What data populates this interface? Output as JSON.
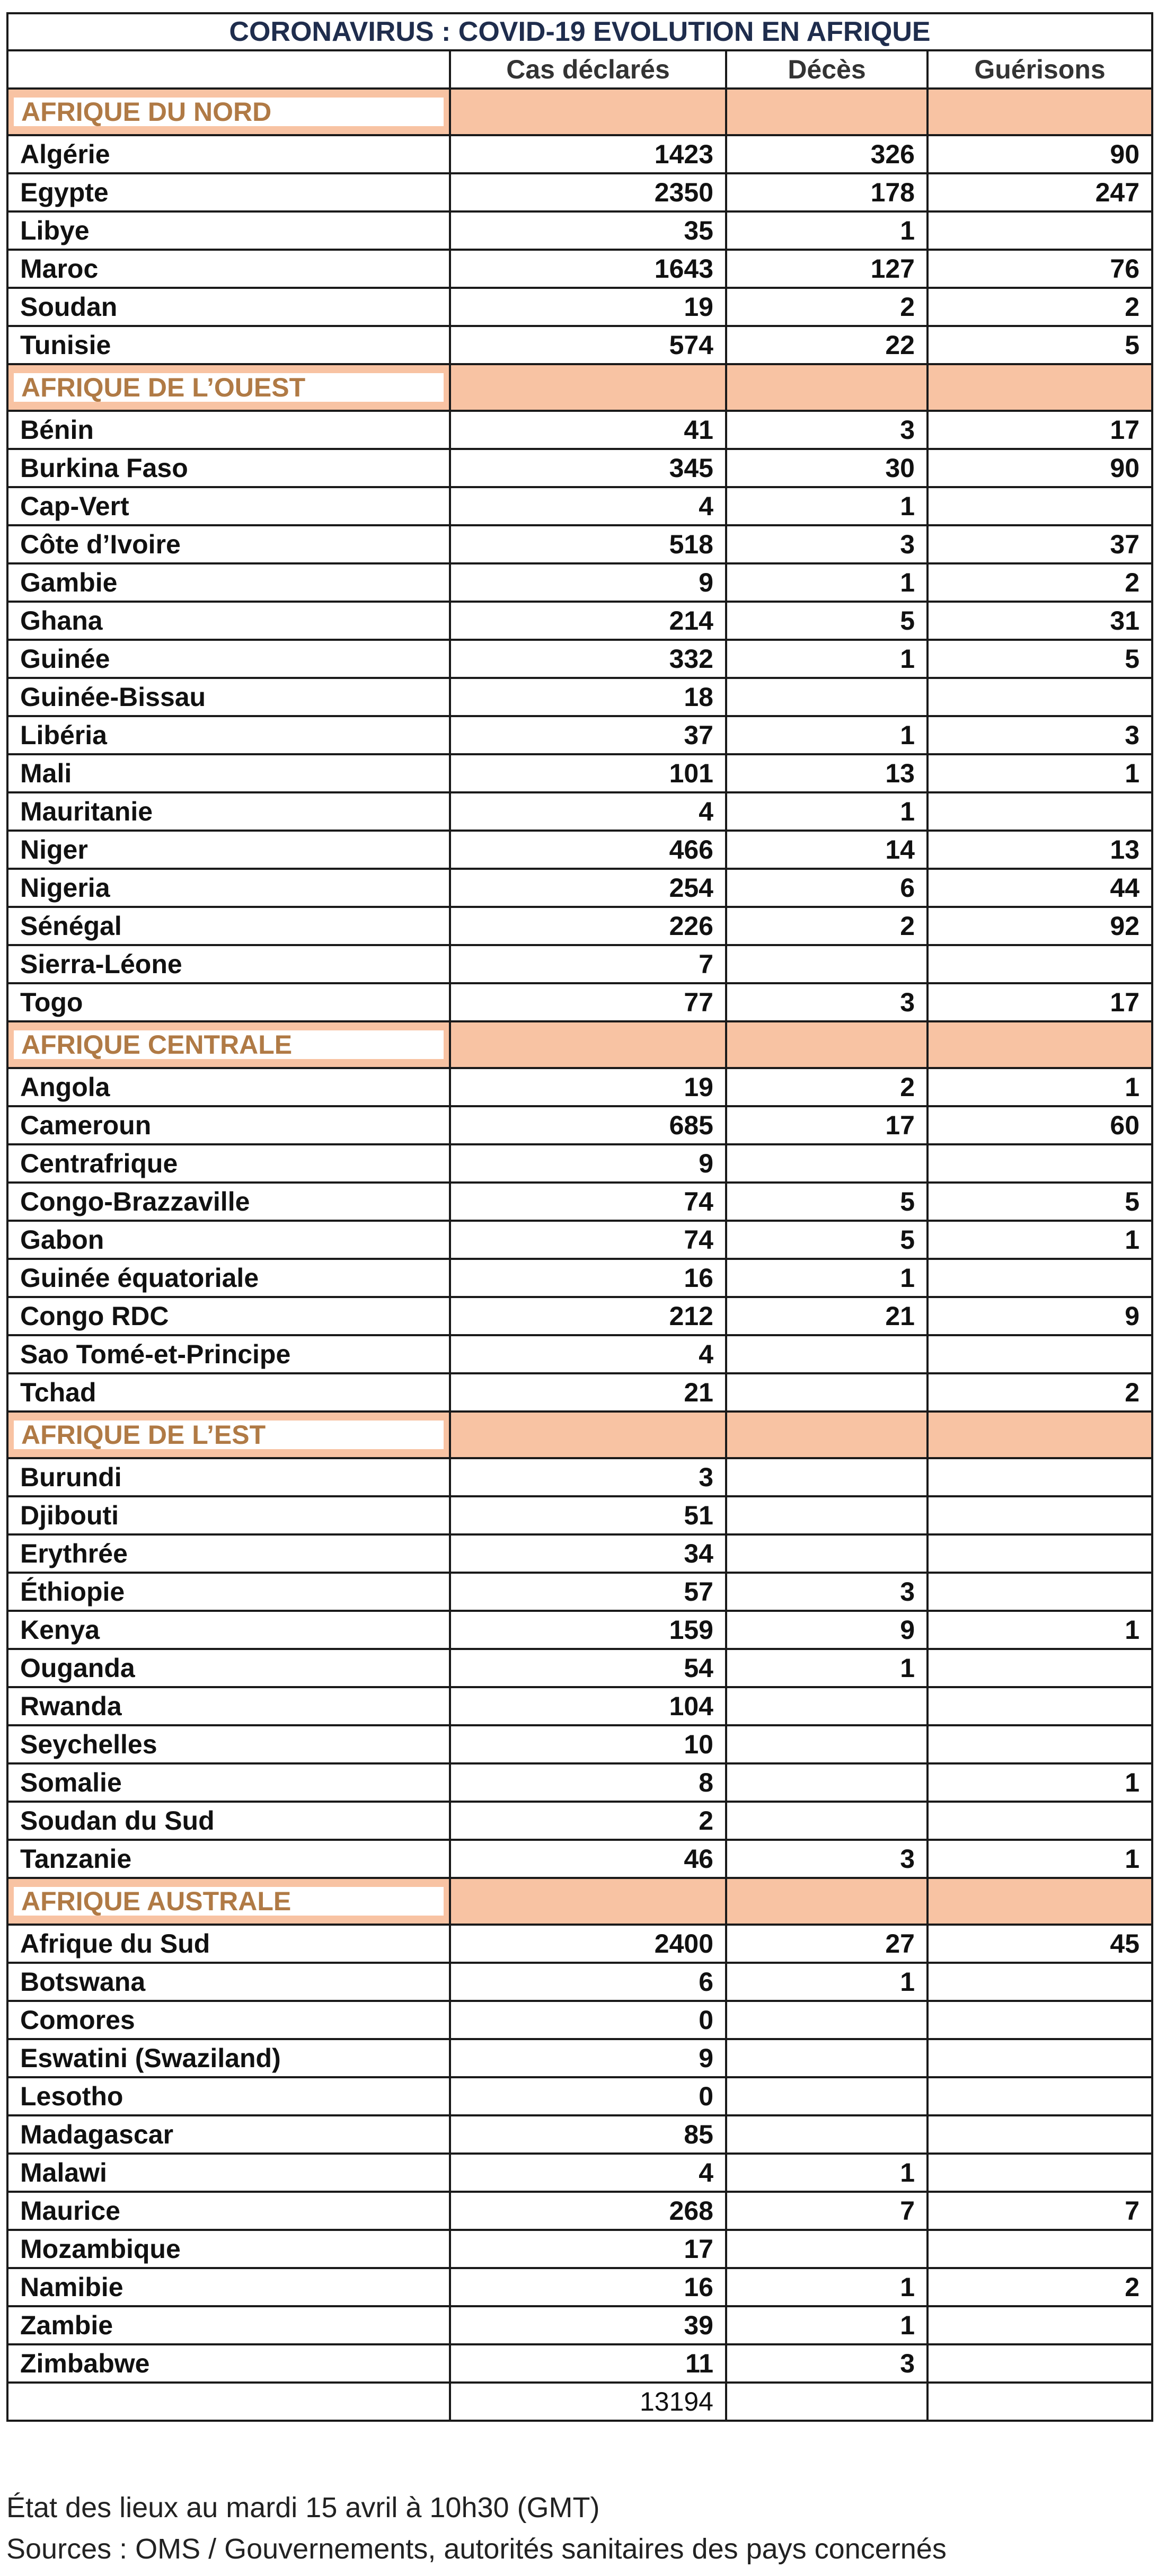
{
  "title": "CORONAVIRUS : COVID-19 EVOLUTION EN AFRIQUE",
  "columns": [
    "",
    "Cas déclarés",
    "Décès",
    "Guérisons"
  ],
  "sections": [
    {
      "name": "AFRIQUE DU NORD",
      "rows": [
        [
          "Algérie",
          "1423",
          "326",
          "90"
        ],
        [
          "Egypte",
          "2350",
          "178",
          "247"
        ],
        [
          "Libye",
          "35",
          "1",
          ""
        ],
        [
          "Maroc",
          "1643",
          "127",
          "76"
        ],
        [
          "Soudan",
          "19",
          "2",
          "2"
        ],
        [
          "Tunisie",
          "574",
          "22",
          "5"
        ]
      ]
    },
    {
      "name": "AFRIQUE DE L’OUEST",
      "rows": [
        [
          "Bénin",
          "41",
          "3",
          "17"
        ],
        [
          "Burkina Faso",
          "345",
          "30",
          "90"
        ],
        [
          "Cap-Vert",
          "4",
          "1",
          ""
        ],
        [
          "Côte d’Ivoire",
          "518",
          "3",
          "37"
        ],
        [
          "Gambie",
          "9",
          "1",
          "2"
        ],
        [
          "Ghana",
          "214",
          "5",
          "31"
        ],
        [
          "Guinée",
          "332",
          "1",
          "5"
        ],
        [
          "Guinée-Bissau",
          "18",
          "",
          ""
        ],
        [
          "Libéria",
          "37",
          "1",
          "3"
        ],
        [
          "Mali",
          "101",
          "13",
          "1"
        ],
        [
          "Mauritanie",
          "4",
          "1",
          ""
        ],
        [
          "Niger",
          "466",
          "14",
          "13"
        ],
        [
          "Nigeria",
          "254",
          "6",
          "44"
        ],
        [
          "Sénégal",
          "226",
          "2",
          "92"
        ],
        [
          "Sierra-Léone",
          "7",
          "",
          ""
        ],
        [
          "Togo",
          "77",
          "3",
          "17"
        ]
      ]
    },
    {
      "name": "AFRIQUE CENTRALE",
      "rows": [
        [
          "Angola",
          "19",
          "2",
          "1"
        ],
        [
          "Cameroun",
          "685",
          "17",
          "60"
        ],
        [
          "Centrafrique",
          "9",
          "",
          ""
        ],
        [
          "Congo-Brazzaville",
          "74",
          "5",
          "5"
        ],
        [
          "Gabon",
          "74",
          "5",
          "1"
        ],
        [
          "Guinée équatoriale",
          "16",
          "1",
          ""
        ],
        [
          "Congo RDC",
          "212",
          "21",
          "9"
        ],
        [
          "Sao Tomé-et-Principe",
          "4",
          "",
          ""
        ],
        [
          "Tchad",
          "21",
          "",
          "2"
        ]
      ]
    },
    {
      "name": "AFRIQUE DE L’EST",
      "rows": [
        [
          "Burundi",
          "3",
          "",
          ""
        ],
        [
          "Djibouti",
          "51",
          "",
          ""
        ],
        [
          "Erythrée",
          "34",
          "",
          ""
        ],
        [
          "Éthiopie",
          "57",
          "3",
          ""
        ],
        [
          "Kenya",
          "159",
          "9",
          "1"
        ],
        [
          "Ouganda",
          "54",
          "1",
          ""
        ],
        [
          "Rwanda",
          "104",
          "",
          ""
        ],
        [
          "Seychelles",
          "10",
          "",
          ""
        ],
        [
          "Somalie",
          "8",
          "",
          "1"
        ],
        [
          "Soudan du Sud",
          "2",
          "",
          ""
        ],
        [
          "Tanzanie",
          "46",
          "3",
          "1"
        ]
      ]
    },
    {
      "name": "AFRIQUE AUSTRALE",
      "rows": [
        [
          "Afrique du Sud",
          "2400",
          "27",
          "45"
        ],
        [
          "Botswana",
          "6",
          "1",
          ""
        ],
        [
          "Comores",
          "0",
          "",
          ""
        ],
        [
          "Eswatini (Swaziland)",
          "9",
          "",
          ""
        ],
        [
          "Lesotho",
          "0",
          "",
          ""
        ],
        [
          "Madagascar",
          "85",
          "",
          ""
        ],
        [
          "Malawi",
          "4",
          "1",
          ""
        ],
        [
          "Maurice",
          "268",
          "7",
          "7"
        ],
        [
          "Mozambique",
          "17",
          "",
          ""
        ],
        [
          "Namibie",
          "16",
          "1",
          "2"
        ],
        [
          "Zambie",
          "39",
          "1",
          ""
        ],
        [
          "Zimbabwe",
          "11",
          "3",
          ""
        ]
      ]
    }
  ],
  "total": {
    "cases": "13194"
  },
  "footer": {
    "line1": "État des lieux au mardi 15 avril à 10h30 (GMT)",
    "line2": "Sources : OMS / Gouvernements, autorités sanitaires des pays concernés"
  },
  "colors": {
    "title": "#1f2d4d",
    "section_fill": "#f8c3a3",
    "section_text": "#b07a45"
  }
}
